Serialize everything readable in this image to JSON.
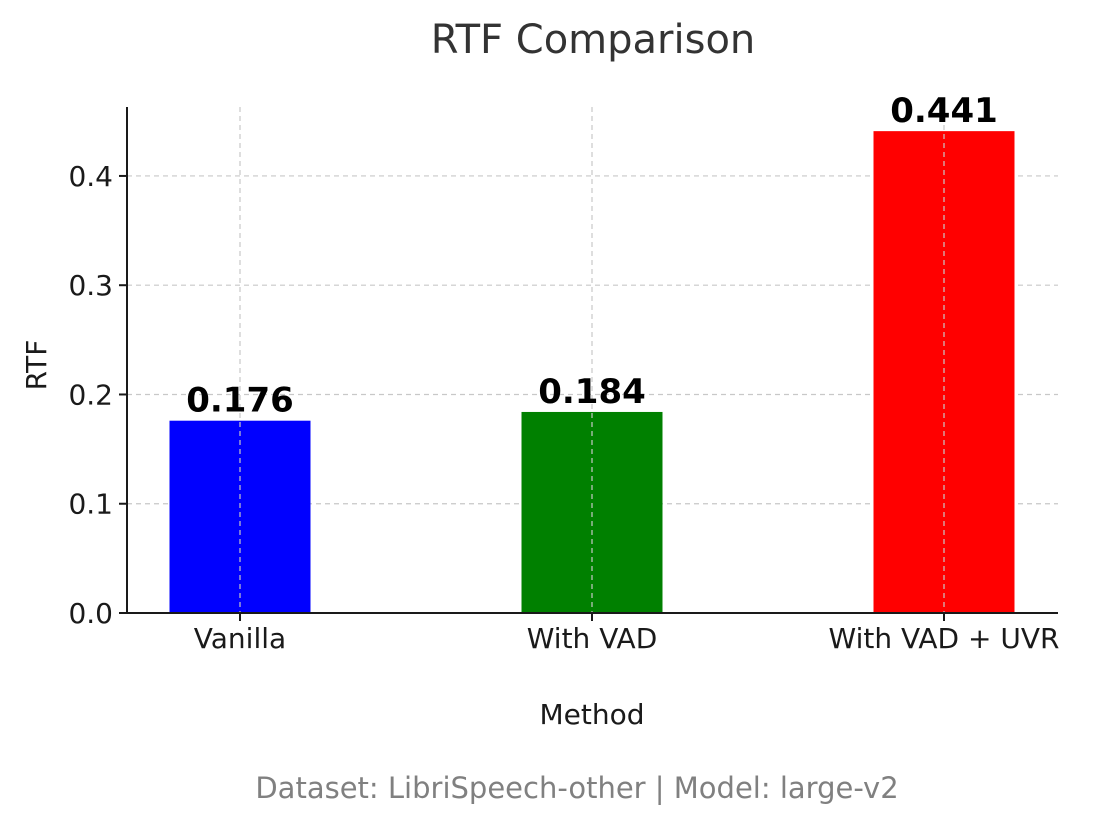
{
  "chart_data": {
    "type": "bar",
    "title": "RTF Comparison",
    "xlabel": "Method",
    "ylabel": "RTF",
    "categories": [
      "Vanilla",
      "With VAD",
      "With VAD + UVR"
    ],
    "values": [
      0.176,
      0.184,
      0.441
    ],
    "value_labels": [
      "0.176",
      "0.184",
      "0.441"
    ],
    "colors": [
      "#0000ff",
      "#008000",
      "#ff0000"
    ],
    "ylim": [
      0,
      0.4631
    ],
    "yticks": [
      0.0,
      0.1,
      0.2,
      0.3,
      0.4
    ],
    "ytick_labels": [
      "0.0",
      "0.1",
      "0.2",
      "0.3",
      "0.4"
    ],
    "grid": true,
    "legend": "none",
    "footnote": "Dataset: LibriSpeech-other | Model: large-v2"
  }
}
